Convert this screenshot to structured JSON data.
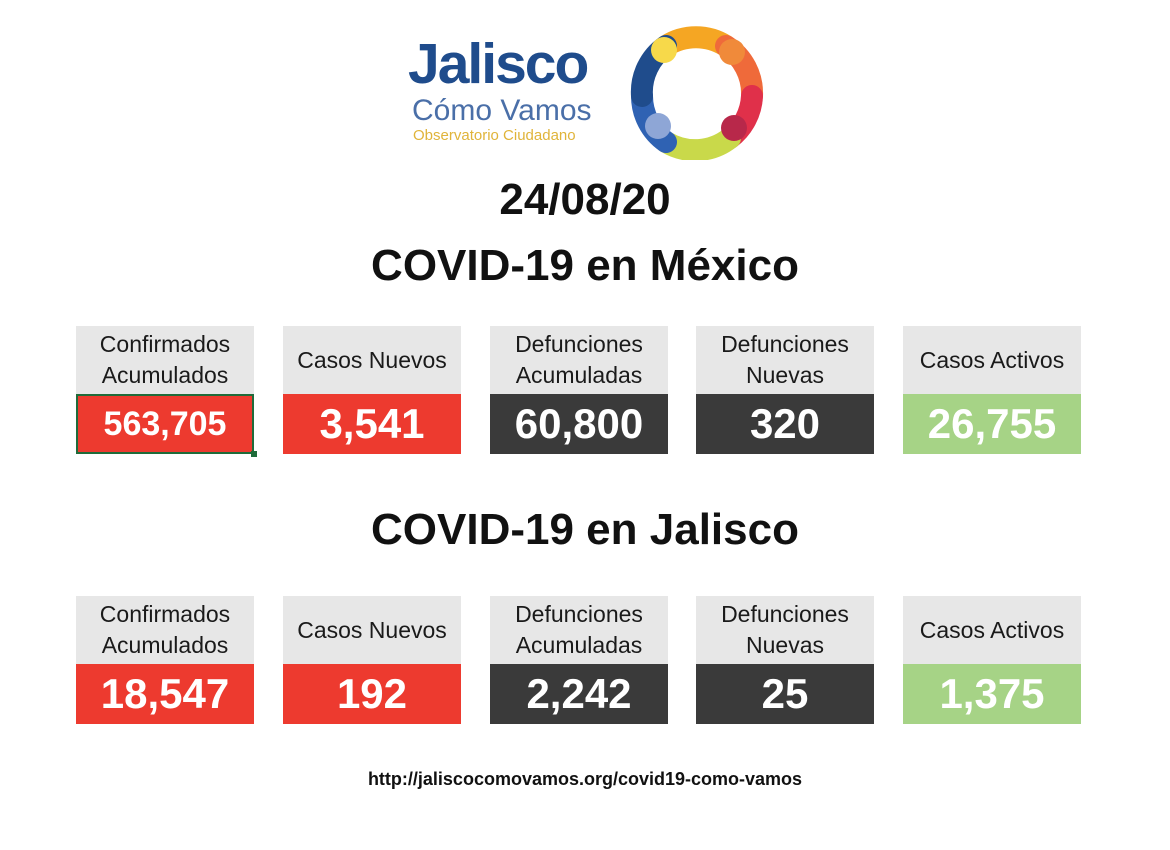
{
  "logo": {
    "title": "Jalisco",
    "subtitle": "Cómo Vamos",
    "tagline": "Observatorio Ciudadano"
  },
  "date": "24/08/20",
  "mexico": {
    "title": "COVID-19 en México",
    "cards": [
      {
        "label": "Confirmados Acumulados",
        "value": "563,705",
        "color": "#ed3a2f"
      },
      {
        "label": "Casos Nuevos",
        "value": "3,541",
        "color": "#ed3a2f"
      },
      {
        "label": "Defunciones Acumuladas",
        "value": "60,800",
        "color": "#3a3a3a"
      },
      {
        "label": "Defunciones Nuevas",
        "value": "320",
        "color": "#3a3a3a"
      },
      {
        "label": "Casos Activos",
        "value": "26,755",
        "color": "#a6d386"
      }
    ]
  },
  "jalisco": {
    "title": "COVID-19 en Jalisco",
    "cards": [
      {
        "label": "Confirmados Acumulados",
        "value": "18,547",
        "color": "#ed3a2f"
      },
      {
        "label": "Casos Nuevos",
        "value": "192",
        "color": "#ed3a2f"
      },
      {
        "label": "Defunciones Acumuladas",
        "value": "2,242",
        "color": "#3a3a3a"
      },
      {
        "label": "Defunciones Nuevas",
        "value": "25",
        "color": "#3a3a3a"
      },
      {
        "label": "Casos Activos",
        "value": "1,375",
        "color": "#a6d386"
      }
    ]
  },
  "footer": {
    "url": "http://jaliscocomovamos.org/covid19-como-vamos"
  }
}
